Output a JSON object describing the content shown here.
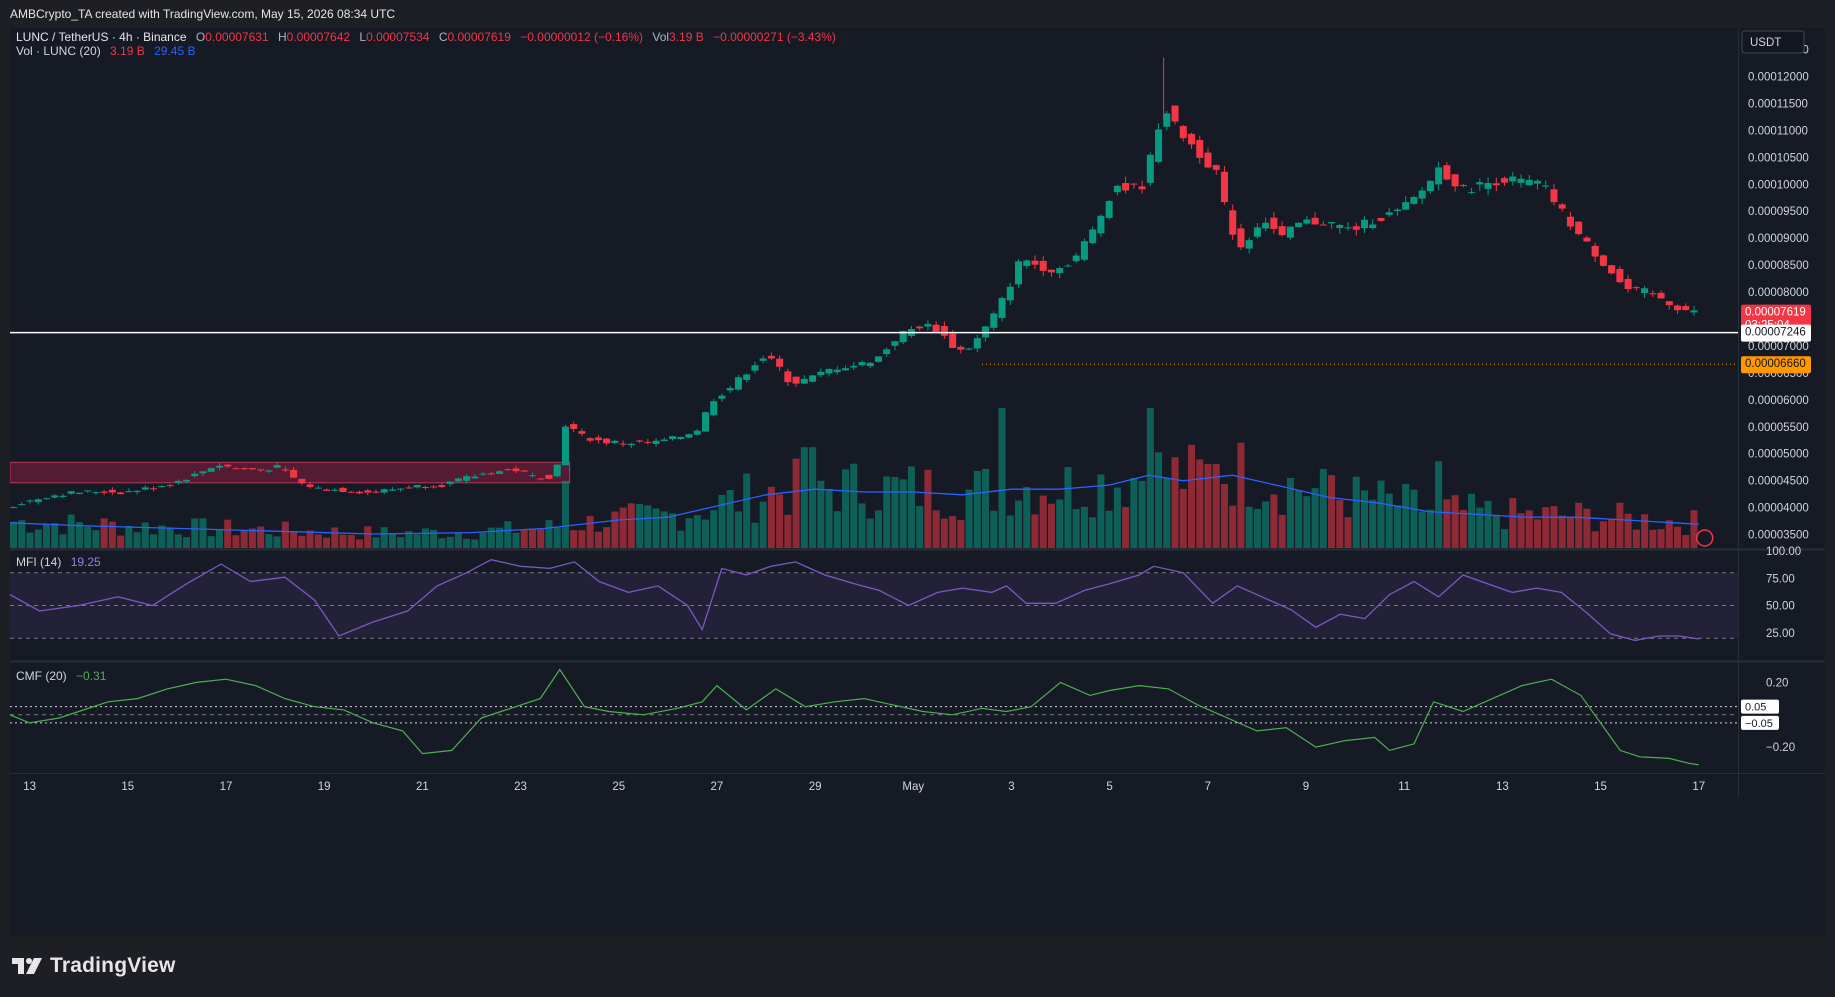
{
  "header": {
    "attribution": "AMBCrypto_TA created with TradingView.com, May 15, 2026 08:34 UTC"
  },
  "legend": {
    "symbol": "LUNC / TetherUS · 4h · Binance",
    "o_key": "O",
    "o_val": "0.00007631",
    "h_key": "H",
    "h_val": "0.00007642",
    "l_key": "L",
    "l_val": "0.00007534",
    "c_key": "C",
    "c_val": "0.00007619",
    "change": "−0.00000012 (−0.16%)",
    "vol_key": "Vol",
    "vol_val": "3.19 B",
    "vol_change": "−0.00000271 (−3.43%)",
    "vol_study": "Vol · LUNC (20)",
    "vol_study_v1": "3.19 B",
    "vol_study_v2": "29.45 B",
    "mfi_label": "MFI (14)",
    "mfi_value": "19.25",
    "cmf_label": "CMF (20)",
    "cmf_value": "−0.31"
  },
  "currency_button": "USDT",
  "footer": {
    "logo_text": "TradingView"
  },
  "colors": {
    "up": "#089981",
    "down": "#f23645",
    "volume_ma": "#2962ff",
    "mfi_line": "#7e57c2",
    "cmf_line": "#4caf50",
    "support_zone": "#8b1e3f",
    "price_badge": "#f23645",
    "level_badge": "#ffffff",
    "low_badge": "#ff9800"
  },
  "chart_data": {
    "type": "candlestick",
    "symbol": "LUNC / TetherUS",
    "timeframe": "4h",
    "exchange": "Binance",
    "price_axis": {
      "ticks": [
        "0.00012500",
        "0.00012000",
        "0.00011500",
        "0.00011000",
        "0.00010500",
        "0.00010000",
        "0.00009500",
        "0.00009000",
        "0.00008500",
        "0.00008000",
        "0.00007500",
        "0.00007000",
        "0.00006500",
        "0.00006000",
        "0.00005500",
        "0.00005000",
        "0.00004500",
        "0.00004000",
        "0.00003500"
      ],
      "range": [
        3.25e-05,
        0.000129
      ]
    },
    "x_axis_ticks": [
      "13",
      "15",
      "17",
      "19",
      "21",
      "23",
      "25",
      "27",
      "29",
      "May",
      "3",
      "5",
      "7",
      "9",
      "11",
      "13",
      "15",
      "17",
      "19",
      "21",
      "23"
    ],
    "time_range_days": [
      12.6,
      23.8
    ],
    "current_price": {
      "value": "0.00007619",
      "countdown": "03:25:04"
    },
    "horizontal_level": {
      "value": "0.00007246"
    },
    "low_marker": {
      "value": "0.00006660"
    },
    "support_zone": {
      "top": 4.84e-05,
      "bottom": 4.46e-05
    },
    "price_path": [
      [
        12.6,
        4e-05
      ],
      [
        13.0,
        4.1e-05
      ],
      [
        13.5,
        4.22e-05
      ],
      [
        14.0,
        4.28e-05
      ],
      [
        14.5,
        4.3e-05
      ],
      [
        15.0,
        4.28e-05
      ],
      [
        15.5,
        4.36e-05
      ],
      [
        16.0,
        4.45e-05
      ],
      [
        16.5,
        4.62e-05
      ],
      [
        16.9,
        4.8e-05
      ],
      [
        17.3,
        4.73e-05
      ],
      [
        17.8,
        4.7e-05
      ],
      [
        18.2,
        4.76e-05
      ],
      [
        18.6,
        4.45e-05
      ],
      [
        19.0,
        4.35e-05
      ],
      [
        19.5,
        4.32e-05
      ],
      [
        20.0,
        4.28e-05
      ],
      [
        20.5,
        4.34e-05
      ],
      [
        21.0,
        4.4e-05
      ],
      [
        21.5,
        4.42e-05
      ],
      [
        22.0,
        4.55e-05
      ],
      [
        22.5,
        4.66e-05
      ],
      [
        23.0,
        4.7e-05
      ],
      [
        23.4,
        4.56e-05
      ],
      [
        23.8,
        4.58e-05
      ],
      [
        24.0,
        5.55e-05
      ],
      [
        24.4,
        5.3e-05
      ],
      [
        24.8,
        5.22e-05
      ],
      [
        25.3,
        5.2e-05
      ],
      [
        25.8,
        5.2e-05
      ],
      [
        26.3,
        5.3e-05
      ],
      [
        26.7,
        5.45e-05
      ],
      [
        27.0,
        6e-05
      ],
      [
        27.4,
        6.25e-05
      ],
      [
        27.7,
        6.52e-05
      ],
      [
        28.0,
        6.8e-05
      ],
      [
        28.3,
        6.68e-05
      ],
      [
        28.6,
        6.3e-05
      ],
      [
        29.0,
        6.4e-05
      ],
      [
        29.5,
        6.6e-05
      ],
      [
        30.0,
        6.65e-05
      ],
      [
        30.4,
        6.8e-05
      ],
      [
        30.8,
        7.2e-05
      ],
      [
        31.3,
        7.4e-05
      ],
      [
        31.6,
        7.3e-05
      ],
      [
        32.0,
        6.9e-05
      ],
      [
        32.3,
        7e-05
      ],
      [
        32.7,
        7.5e-05
      ],
      [
        33.0,
        8e-05
      ],
      [
        33.3,
        8.65e-05
      ],
      [
        33.6,
        8.5e-05
      ],
      [
        34.0,
        8.4e-05
      ],
      [
        34.4,
        8.65e-05
      ],
      [
        34.8,
        9.2e-05
      ],
      [
        35.2,
        0.0001
      ],
      [
        35.5,
        9.9e-05
      ],
      [
        35.8,
        0.0001
      ],
      [
        36.2,
        0.000115
      ],
      [
        36.4,
        0.000111
      ],
      [
        36.7,
        0.000108
      ],
      [
        37.0,
        0.000105
      ],
      [
        37.3,
        0.000102
      ],
      [
        37.5,
        9.3e-05
      ],
      [
        37.8,
        8.8e-05
      ],
      [
        38.2,
        9.4e-05
      ],
      [
        38.6,
        9e-05
      ],
      [
        39.0,
        9.3e-05
      ],
      [
        39.5,
        9.3e-05
      ],
      [
        40.0,
        9.15e-05
      ],
      [
        40.5,
        9.35e-05
      ],
      [
        41.0,
        9.5e-05
      ],
      [
        41.4,
        9.8e-05
      ],
      [
        41.8,
        0.000103
      ],
      [
        42.3,
        9.9e-05
      ],
      [
        42.7,
        0.0001
      ],
      [
        43.1,
        0.000101
      ],
      [
        43.5,
        0.0001005
      ],
      [
        43.9,
        0.0001
      ],
      [
        44.3,
        9.5e-05
      ],
      [
        44.7,
        9e-05
      ],
      [
        45.0,
        8.7e-05
      ],
      [
        45.3,
        8.4e-05
      ],
      [
        45.6,
        8.05e-05
      ],
      [
        46.0,
        8e-05
      ],
      [
        46.3,
        7.9e-05
      ],
      [
        46.7,
        7.7e-05
      ],
      [
        47.0,
        7.62e-05
      ]
    ],
    "mfi": {
      "label": "MFI (14)",
      "value": 19.25,
      "ylim": [
        0,
        100
      ],
      "ticks": [
        "100.00",
        "75.00",
        "50.00",
        "25.00"
      ],
      "band": [
        20,
        80
      ],
      "series": [
        [
          12.6,
          60
        ],
        [
          13.2,
          45
        ],
        [
          14.0,
          50
        ],
        [
          14.8,
          58
        ],
        [
          15.5,
          50
        ],
        [
          16.2,
          70
        ],
        [
          16.9,
          88
        ],
        [
          17.5,
          72
        ],
        [
          18.2,
          76
        ],
        [
          18.8,
          55
        ],
        [
          19.3,
          22
        ],
        [
          20.0,
          35
        ],
        [
          20.7,
          45
        ],
        [
          21.3,
          68
        ],
        [
          21.9,
          80
        ],
        [
          22.4,
          92
        ],
        [
          23.0,
          86
        ],
        [
          23.6,
          84
        ],
        [
          24.1,
          90
        ],
        [
          24.6,
          72
        ],
        [
          25.2,
          62
        ],
        [
          25.8,
          68
        ],
        [
          26.4,
          50
        ],
        [
          26.7,
          28
        ],
        [
          27.1,
          84
        ],
        [
          27.6,
          78
        ],
        [
          28.1,
          86
        ],
        [
          28.6,
          90
        ],
        [
          29.2,
          78
        ],
        [
          29.8,
          70
        ],
        [
          30.3,
          64
        ],
        [
          30.9,
          50
        ],
        [
          31.5,
          62
        ],
        [
          32.0,
          66
        ],
        [
          32.6,
          62
        ],
        [
          32.9,
          68
        ],
        [
          33.3,
          52
        ],
        [
          33.9,
          52
        ],
        [
          34.5,
          64
        ],
        [
          35.0,
          70
        ],
        [
          35.6,
          78
        ],
        [
          35.9,
          86
        ],
        [
          36.5,
          80
        ],
        [
          37.1,
          52
        ],
        [
          37.6,
          68
        ],
        [
          38.1,
          58
        ],
        [
          38.7,
          46
        ],
        [
          39.2,
          30
        ],
        [
          39.7,
          42
        ],
        [
          40.2,
          38
        ],
        [
          40.7,
          60
        ],
        [
          41.2,
          72
        ],
        [
          41.7,
          58
        ],
        [
          42.2,
          78
        ],
        [
          42.7,
          70
        ],
        [
          43.2,
          62
        ],
        [
          43.7,
          66
        ],
        [
          44.2,
          62
        ],
        [
          44.7,
          44
        ],
        [
          45.2,
          24
        ],
        [
          45.7,
          18
        ],
        [
          46.2,
          22
        ],
        [
          46.6,
          22
        ],
        [
          47.0,
          19.25
        ]
      ]
    },
    "cmf": {
      "label": "CMF (20)",
      "value": -0.31,
      "ticks": [
        "0.20",
        "−0.20"
      ],
      "level_labels": [
        "0.05",
        "−0.05"
      ],
      "levels": [
        0.05,
        -0.05
      ],
      "ylim": [
        -0.36,
        0.32
      ],
      "series": [
        [
          12.6,
          0.0
        ],
        [
          13.0,
          -0.05
        ],
        [
          13.6,
          -0.02
        ],
        [
          14.0,
          0.02
        ],
        [
          14.6,
          0.08
        ],
        [
          15.2,
          0.1
        ],
        [
          15.8,
          0.16
        ],
        [
          16.4,
          0.2
        ],
        [
          17.0,
          0.22
        ],
        [
          17.6,
          0.18
        ],
        [
          18.2,
          0.1
        ],
        [
          18.8,
          0.05
        ],
        [
          19.4,
          0.03
        ],
        [
          20.0,
          -0.05
        ],
        [
          20.6,
          -0.1
        ],
        [
          21.0,
          -0.24
        ],
        [
          21.6,
          -0.22
        ],
        [
          22.2,
          -0.02
        ],
        [
          22.6,
          0.02
        ],
        [
          23.0,
          0.06
        ],
        [
          23.4,
          0.1
        ],
        [
          23.8,
          0.28
        ],
        [
          24.3,
          0.05
        ],
        [
          24.8,
          0.02
        ],
        [
          25.5,
          0.0
        ],
        [
          26.2,
          0.04
        ],
        [
          26.7,
          0.08
        ],
        [
          27.0,
          0.18
        ],
        [
          27.6,
          0.03
        ],
        [
          28.2,
          0.16
        ],
        [
          28.8,
          0.05
        ],
        [
          29.4,
          0.08
        ],
        [
          30.0,
          0.1
        ],
        [
          30.6,
          0.06
        ],
        [
          31.2,
          0.02
        ],
        [
          31.8,
          0.0
        ],
        [
          32.4,
          0.04
        ],
        [
          32.9,
          0.02
        ],
        [
          33.4,
          0.05
        ],
        [
          34.0,
          0.2
        ],
        [
          34.6,
          0.12
        ],
        [
          35.0,
          0.15
        ],
        [
          35.6,
          0.18
        ],
        [
          36.2,
          0.16
        ],
        [
          36.8,
          0.06
        ],
        [
          37.4,
          -0.02
        ],
        [
          38.0,
          -0.1
        ],
        [
          38.6,
          -0.08
        ],
        [
          39.2,
          -0.2
        ],
        [
          39.8,
          -0.16
        ],
        [
          40.4,
          -0.14
        ],
        [
          40.7,
          -0.22
        ],
        [
          41.2,
          -0.18
        ],
        [
          41.6,
          0.08
        ],
        [
          42.2,
          0.02
        ],
        [
          42.8,
          0.1
        ],
        [
          43.4,
          0.18
        ],
        [
          44.0,
          0.22
        ],
        [
          44.6,
          0.12
        ],
        [
          45.0,
          -0.05
        ],
        [
          45.4,
          -0.22
        ],
        [
          45.8,
          -0.26
        ],
        [
          46.4,
          -0.27
        ],
        [
          46.8,
          -0.3
        ],
        [
          47.0,
          -0.31
        ]
      ]
    },
    "volume_ma_path": [
      [
        12.6,
        0.18
      ],
      [
        14.0,
        0.16
      ],
      [
        16.0,
        0.14
      ],
      [
        18.0,
        0.12
      ],
      [
        20.0,
        0.1
      ],
      [
        22.0,
        0.11
      ],
      [
        23.5,
        0.14
      ],
      [
        25.0,
        0.2
      ],
      [
        26.0,
        0.22
      ],
      [
        27.0,
        0.3
      ],
      [
        28.0,
        0.38
      ],
      [
        29.0,
        0.42
      ],
      [
        30.0,
        0.4
      ],
      [
        31.0,
        0.4
      ],
      [
        32.0,
        0.38
      ],
      [
        33.0,
        0.42
      ],
      [
        34.0,
        0.42
      ],
      [
        35.0,
        0.45
      ],
      [
        35.8,
        0.52
      ],
      [
        36.5,
        0.48
      ],
      [
        37.5,
        0.52
      ],
      [
        38.5,
        0.44
      ],
      [
        39.5,
        0.36
      ],
      [
        40.5,
        0.32
      ],
      [
        41.5,
        0.26
      ],
      [
        42.5,
        0.24
      ],
      [
        43.5,
        0.22
      ],
      [
        44.5,
        0.22
      ],
      [
        45.5,
        0.2
      ],
      [
        46.5,
        0.18
      ],
      [
        47.0,
        0.17
      ]
    ],
    "volume_spikes_days": [
      [
        23.8,
        0.48
      ],
      [
        28.8,
        0.72
      ],
      [
        32.8,
        1.0
      ],
      [
        35.8,
        1.0
      ],
      [
        37.0,
        0.6
      ],
      [
        39.5,
        0.52
      ],
      [
        41.6,
        0.62
      ]
    ]
  }
}
